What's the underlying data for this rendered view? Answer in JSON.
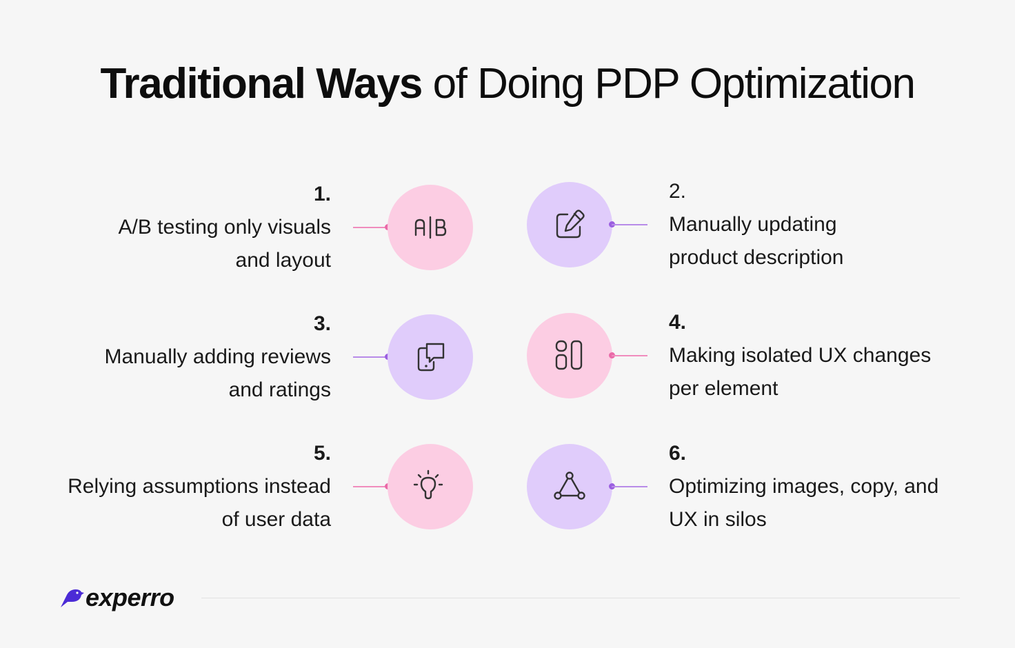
{
  "title": {
    "bold": "Traditional Ways",
    "regular": " of Doing PDP Optimization"
  },
  "items": [
    {
      "num": "1.",
      "line1": "A/B testing only visuals",
      "line2": "and layout",
      "icon": "ab-test-icon",
      "color": "#fccde3"
    },
    {
      "num": "2.",
      "line1": "Manually updating",
      "line2": "product description",
      "icon": "edit-icon",
      "color": "#e0ccfb"
    },
    {
      "num": "3.",
      "line1": "Manually adding reviews",
      "line2": "and ratings",
      "icon": "review-icon",
      "color": "#e0ccfb"
    },
    {
      "num": "4.",
      "line1": "Making isolated UX changes",
      "line2": "per element",
      "icon": "layout-blocks-icon",
      "color": "#fccde3"
    },
    {
      "num": "5.",
      "line1": "Relying assumptions instead",
      "line2": "of user data",
      "icon": "lightbulb-icon",
      "color": "#fccde3"
    },
    {
      "num": "6.",
      "line1": "Optimizing images, copy, and",
      "line2": "UX in silos",
      "icon": "network-triangle-icon",
      "color": "#e0ccfb"
    }
  ],
  "logo": {
    "text": "experro",
    "icon": "bird-icon",
    "color": "#4b2bd6"
  },
  "colors": {
    "pink": "#fccde3",
    "purple": "#e0ccfb",
    "pink_line": "#f08cbd",
    "purple_line": "#b88be8"
  }
}
